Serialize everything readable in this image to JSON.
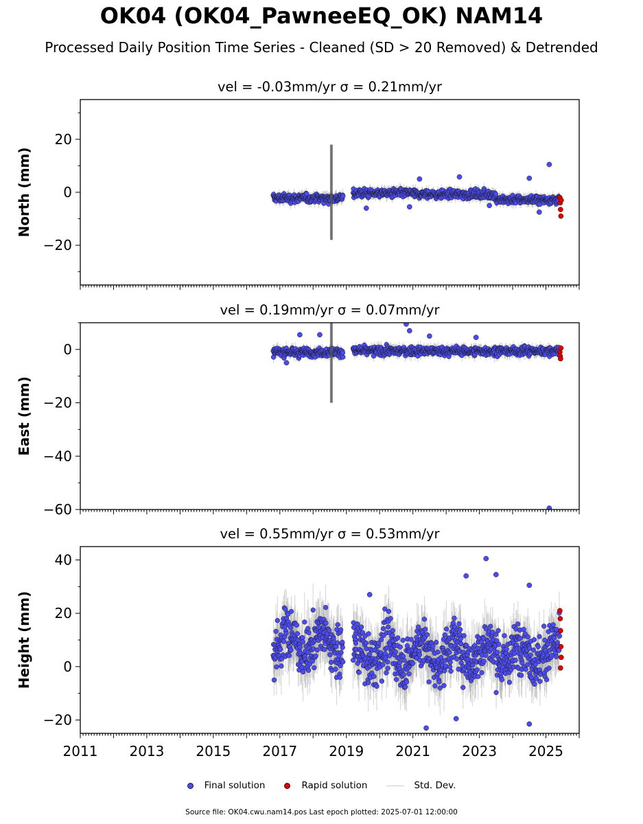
{
  "title": "OK04 (OK04_PawneeEQ_OK) NAM14",
  "subtitle": "Processed Daily Position Time Series - Cleaned (SD > 20 Removed) & Detrended",
  "legend": {
    "final": "Final solution",
    "rapid": "Rapid solution",
    "std": "Std. Dev."
  },
  "footer": "Source file: OK04.cwu.nam14.pos  Last epoch plotted: 2025-07-01 12:00:00",
  "colors": {
    "final": "#4b4bf0",
    "rapid": "#e00000",
    "std": "#c9c9c9"
  },
  "chart_data": [
    {
      "type": "scatter",
      "component": "north",
      "panel_title": "vel = -0.03mm/yr   σ = 0.21mm/yr",
      "ylabel": "North (mm)",
      "xlim": [
        2011,
        2026
      ],
      "ylim": [
        -35,
        35
      ],
      "yticks": [
        -20,
        0,
        20
      ],
      "x_ticks": [
        "2011",
        "2013",
        "2015",
        "2017",
        "2019",
        "2021",
        "2023",
        "2025"
      ],
      "data_span": [
        2016.8,
        2025.45
      ],
      "gap": [
        2018.9,
        2019.2
      ],
      "final_points": [
        [
          2019.6,
          -6.0
        ],
        [
          2020.9,
          -5.5
        ],
        [
          2022.4,
          5.8
        ],
        [
          2024.5,
          5.3
        ],
        [
          2025.1,
          10.5
        ],
        [
          2021.2,
          5.0
        ],
        [
          2023.3,
          -5.0
        ],
        [
          2024.8,
          -7.5
        ]
      ],
      "rapid_points": [
        [
          2025.42,
          -2.0
        ],
        [
          2025.43,
          -4.0
        ],
        [
          2025.44,
          -6.5
        ],
        [
          2025.45,
          -9.0
        ],
        [
          2025.46,
          -3.0
        ]
      ]
    },
    {
      "type": "scatter",
      "component": "east",
      "panel_title": "vel = 0.19mm/yr   σ = 0.07mm/yr",
      "ylabel": "East (mm)",
      "xlim": [
        2011,
        2026
      ],
      "ylim": [
        -60,
        10
      ],
      "yticks": [
        -60,
        -40,
        -20,
        0
      ],
      "x_ticks": [
        "2011",
        "2013",
        "2015",
        "2017",
        "2019",
        "2021",
        "2023",
        "2025"
      ],
      "data_span": [
        2016.8,
        2025.45
      ],
      "gap": [
        2018.9,
        2019.2
      ],
      "final_points": [
        [
          2017.6,
          5.5
        ],
        [
          2018.2,
          5.5
        ],
        [
          2020.8,
          9.5
        ],
        [
          2020.9,
          7.0
        ],
        [
          2021.5,
          5.0
        ],
        [
          2022.9,
          4.5
        ],
        [
          2025.1,
          -59.5
        ],
        [
          2017.2,
          -5.0
        ]
      ],
      "rapid_points": [
        [
          2025.42,
          -1.0
        ],
        [
          2025.43,
          -2.5
        ],
        [
          2025.44,
          -3.5
        ],
        [
          2025.45,
          0.5
        ]
      ]
    },
    {
      "type": "scatter",
      "component": "height",
      "panel_title": "vel = 0.55mm/yr   σ = 0.53mm/yr",
      "ylabel": "Height (mm)",
      "xlim": [
        2011,
        2026
      ],
      "ylim": [
        -25,
        45
      ],
      "yticks": [
        -20,
        0,
        20,
        40
      ],
      "x_ticks": [
        "2011",
        "2013",
        "2015",
        "2017",
        "2019",
        "2021",
        "2023",
        "2025"
      ],
      "data_span": [
        2016.8,
        2025.45
      ],
      "gap": [
        2018.9,
        2019.2
      ],
      "final_points": [
        [
          2023.2,
          40.5
        ],
        [
          2023.5,
          34.5
        ],
        [
          2022.6,
          34.0
        ],
        [
          2021.4,
          -23.0
        ],
        [
          2022.3,
          -19.5
        ],
        [
          2024.5,
          -21.5
        ],
        [
          2024.5,
          30.5
        ],
        [
          2019.7,
          27.0
        ]
      ],
      "rapid_points": [
        [
          2025.42,
          21.0
        ],
        [
          2025.43,
          18.0
        ],
        [
          2025.44,
          13.5
        ],
        [
          2025.45,
          7.5
        ],
        [
          2025.46,
          3.5
        ],
        [
          2025.44,
          -0.5
        ]
      ]
    }
  ]
}
